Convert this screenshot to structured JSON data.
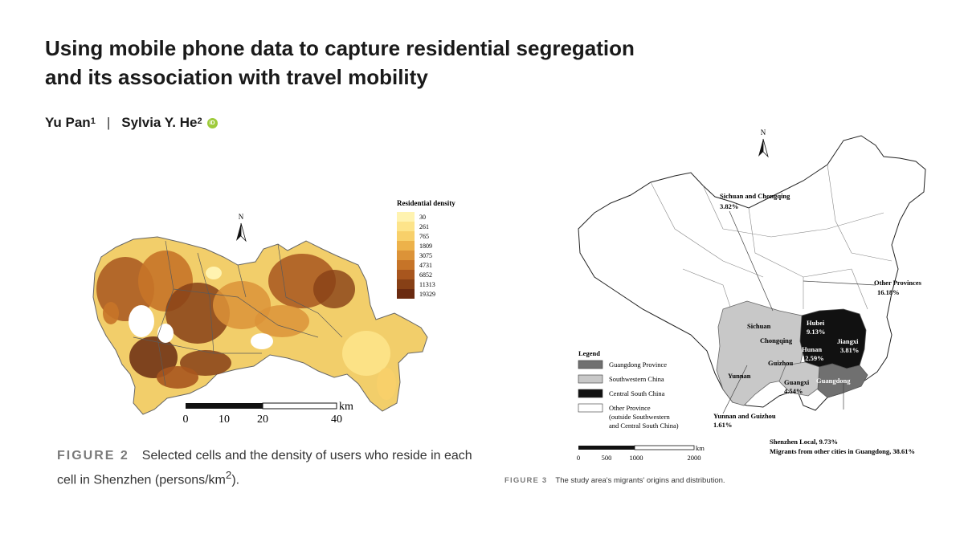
{
  "paper": {
    "title_line1": "Using mobile phone data to capture residential segregation",
    "title_line2": "and its association with travel mobility",
    "author1": "Yu Pan",
    "author1_sup": "1",
    "author_sep": "|",
    "author2": "Sylvia Y. He",
    "author2_sup": "2",
    "orcid_icon": "orcid-icon"
  },
  "figure2": {
    "label": "FIGURE 2",
    "caption_main": "Selected cells and the density of users who reside in each cell in Shenzhen (persons/km",
    "caption_sup": "2",
    "caption_end": ").",
    "north": "N",
    "legend_title": "Residential density",
    "legend_values": [
      "30",
      "261",
      "765",
      "1809",
      "3075",
      "4731",
      "6852",
      "11313",
      "19329"
    ],
    "legend_colors": [
      "#fff3b0",
      "#fde48a",
      "#f8d06a",
      "#edb24a",
      "#dc9338",
      "#c67428",
      "#a8561e",
      "#874016",
      "#6a2a10"
    ],
    "scale_unit": "km",
    "scale_ticks": [
      "0",
      "10",
      "20",
      "40"
    ]
  },
  "figure3": {
    "label": "FIGURE 3",
    "caption": "The study area's migrants' origins and distribution.",
    "north": "N",
    "legend_title": "Legend",
    "legend_items": [
      "Guangdong Province",
      "Southwestern China",
      "Central South China",
      "Other Province",
      "(outside Southwestern",
      "and Central South China)"
    ],
    "annotations": {
      "sichuan_chongqing": "Sichuan and Chongqing",
      "sichuan_chongqing_pct": "3.82%",
      "other_provinces": "Other Provinces",
      "other_provinces_pct": "16.18%",
      "sichuan": "Sichuan",
      "chongqing": "Chongqing",
      "guizhou": "Guizhou",
      "yunnan": "Yunnan",
      "guangxi": "Guangxi",
      "guangxi_pct": "4.54%",
      "hubei": "Hubei",
      "hubei_pct": "9.13%",
      "hunan": "Hunan",
      "hunan_pct": "12.59%",
      "jiangxi": "Jiangxi",
      "jiangxi_pct": "3.81%",
      "guangdong": "Guangdong",
      "yunnan_guizhou": "Yunnan and Guizhou",
      "yunnan_guizhou_pct": "1.61%",
      "shenzhen_local": "Shenzhen Local, 9.73%",
      "migrants_guangdong": "Migrants from other cities in Guangdong, 38.61%"
    },
    "scale_unit": "km",
    "scale_ticks": [
      "0",
      "500",
      "1000",
      "2000"
    ]
  }
}
